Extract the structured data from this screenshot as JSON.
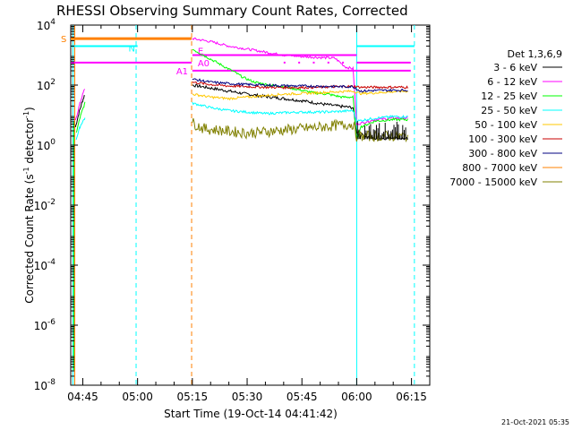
{
  "chart_data": {
    "type": "line",
    "title": "RHESSI Observing Summary Count Rates, Corrected",
    "xlabel": "Start Time (19-Oct-14 04:41:42)",
    "ylabel_prefix": "Corrected Count Rate (s",
    "ylabel_sup": "-1",
    "ylabel_suffix": " detector",
    "ylabel_sup2": "-1",
    "ylabel_close": ")",
    "timestamp": "21-Oct-2021 05:35",
    "x_range_minutes": [
      41.7,
      140
    ],
    "ylim_log10": [
      -8,
      4
    ],
    "x_ticks": [
      {
        "label": "04:45",
        "minute": 45
      },
      {
        "label": "05:00",
        "minute": 60
      },
      {
        "label": "05:15",
        "minute": 75
      },
      {
        "label": "05:30",
        "minute": 90
      },
      {
        "label": "05:45",
        "minute": 105
      },
      {
        "label": "06:00",
        "minute": 120
      },
      {
        "label": "06:15",
        "minute": 135
      }
    ],
    "y_ticks": [
      {
        "base": "10",
        "exp": "4",
        "log": 4
      },
      {
        "base": "10",
        "exp": "2",
        "log": 2
      },
      {
        "base": "10",
        "exp": "0",
        "log": 0
      },
      {
        "base": "10",
        "exp": "-2",
        "log": -2
      },
      {
        "base": "10",
        "exp": "-4",
        "log": -4
      },
      {
        "base": "10",
        "exp": "-6",
        "log": -6
      },
      {
        "base": "10",
        "exp": "-8",
        "log": -8
      }
    ],
    "legend_title": "Det 1,3,6,9",
    "series": [
      {
        "name": "3 - 6 keV",
        "color": "#000000",
        "pre": [
          [
            43.0,
            0.6
          ],
          [
            44.0,
            1.1
          ],
          [
            45.0,
            1.5
          ],
          [
            45.6,
            1.7
          ]
        ],
        "main": [
          [
            75.0,
            2.0
          ],
          [
            80,
            1.9
          ],
          [
            85,
            1.8
          ],
          [
            90,
            1.7
          ],
          [
            95,
            1.62
          ],
          [
            100,
            1.55
          ],
          [
            105,
            1.48
          ],
          [
            110,
            1.38
          ],
          [
            115,
            1.3
          ],
          [
            119,
            1.25
          ],
          [
            120,
            0.4
          ],
          [
            125,
            0.2
          ],
          [
            130,
            0.25
          ],
          [
            134,
            0.2
          ]
        ]
      },
      {
        "name": "6 - 12 keV",
        "color": "#ff00ff",
        "pre": [
          [
            43.0,
            0.8
          ],
          [
            44.0,
            1.3
          ],
          [
            45.0,
            1.7
          ],
          [
            45.6,
            1.9
          ]
        ],
        "main": [
          [
            75.0,
            3.55
          ],
          [
            80,
            3.45
          ],
          [
            85,
            3.3
          ],
          [
            90,
            3.2
          ],
          [
            95,
            3.1
          ],
          [
            100,
            3.0
          ],
          [
            105,
            2.95
          ],
          [
            110,
            2.92
          ],
          [
            114,
            2.9
          ],
          [
            117,
            2.6
          ],
          [
            119,
            2.55
          ],
          [
            120,
            0.7
          ],
          [
            125,
            0.85
          ],
          [
            130,
            0.9
          ],
          [
            134,
            0.9
          ]
        ]
      },
      {
        "name": "12 - 25 keV",
        "color": "#00ff00",
        "pre": [
          [
            43.2,
            0.4
          ],
          [
            44.2,
            0.9
          ],
          [
            45.0,
            1.2
          ],
          [
            45.6,
            1.4
          ]
        ],
        "main": [
          [
            75.0,
            3.2
          ],
          [
            78,
            3.0
          ],
          [
            81,
            2.8
          ],
          [
            84,
            2.6
          ],
          [
            87,
            2.4
          ],
          [
            89,
            2.25
          ],
          [
            92,
            2.1
          ],
          [
            96,
            2.0
          ],
          [
            100,
            1.95
          ],
          [
            104,
            1.85
          ],
          [
            108,
            1.75
          ],
          [
            112,
            1.7
          ],
          [
            116,
            1.6
          ],
          [
            119,
            1.6
          ],
          [
            120,
            0.1
          ],
          [
            121,
            0.6
          ],
          [
            125,
            0.8
          ],
          [
            130,
            0.85
          ],
          [
            134,
            0.85
          ]
        ]
      },
      {
        "name": "25 - 50 keV",
        "color": "#00ffff",
        "pre": [
          [
            43.2,
            0.2
          ],
          [
            44.2,
            0.6
          ],
          [
            45.0,
            0.8
          ],
          [
            45.6,
            0.9
          ]
        ],
        "main": [
          [
            75.0,
            1.4
          ],
          [
            80,
            1.25
          ],
          [
            85,
            1.15
          ],
          [
            90,
            1.1
          ],
          [
            95,
            1.05
          ],
          [
            100,
            1.08
          ],
          [
            105,
            1.1
          ],
          [
            110,
            1.1
          ],
          [
            115,
            1.12
          ],
          [
            119,
            1.15
          ],
          [
            120,
            0.8
          ],
          [
            125,
            0.9
          ],
          [
            130,
            0.95
          ],
          [
            134,
            0.95
          ]
        ]
      },
      {
        "name": "50 - 100 keV",
        "color": "#ffc800",
        "pre": [],
        "main": [
          [
            75.0,
            1.7
          ],
          [
            80,
            1.6
          ],
          [
            85,
            1.55
          ],
          [
            90,
            1.6
          ],
          [
            95,
            1.65
          ],
          [
            100,
            1.7
          ],
          [
            105,
            1.72
          ],
          [
            110,
            1.75
          ],
          [
            115,
            1.78
          ],
          [
            119,
            1.8
          ],
          [
            121,
            1.72
          ],
          [
            125,
            1.74
          ],
          [
            130,
            1.78
          ],
          [
            134,
            1.8
          ]
        ]
      },
      {
        "name": "100 - 300 keV",
        "color": "#c80000",
        "pre": [],
        "main": [
          [
            75.0,
            2.1
          ],
          [
            80,
            2.02
          ],
          [
            85,
            1.97
          ],
          [
            90,
            1.95
          ],
          [
            95,
            1.93
          ],
          [
            100,
            1.92
          ],
          [
            105,
            1.92
          ],
          [
            110,
            1.93
          ],
          [
            115,
            1.95
          ],
          [
            119,
            1.96
          ],
          [
            121,
            1.93
          ],
          [
            125,
            1.93
          ],
          [
            130,
            1.93
          ],
          [
            134,
            1.93
          ]
        ]
      },
      {
        "name": "300 - 800 keV",
        "color": "#000080",
        "pre": [],
        "main": [
          [
            75.0,
            2.2
          ],
          [
            80,
            2.1
          ],
          [
            85,
            2.05
          ],
          [
            90,
            2.02
          ],
          [
            95,
            2.0
          ],
          [
            100,
            1.98
          ],
          [
            105,
            1.97
          ],
          [
            110,
            1.96
          ],
          [
            115,
            1.95
          ],
          [
            119,
            1.95
          ],
          [
            121,
            1.8
          ],
          [
            125,
            1.82
          ],
          [
            130,
            1.83
          ],
          [
            134,
            1.83
          ]
        ]
      },
      {
        "name": "800 - 7000 keV",
        "color": "#ff8000",
        "pre": [],
        "main": []
      },
      {
        "name": "7000 - 15000 keV",
        "color": "#808000",
        "pre": [],
        "main": [
          [
            75.0,
            0.75
          ],
          [
            78,
            0.55
          ],
          [
            82,
            0.5
          ],
          [
            86,
            0.45
          ],
          [
            90,
            0.4
          ],
          [
            95,
            0.45
          ],
          [
            100,
            0.5
          ],
          [
            105,
            0.55
          ],
          [
            110,
            0.6
          ],
          [
            114,
            0.65
          ],
          [
            119,
            0.7
          ],
          [
            120,
            0.3
          ],
          [
            134,
            0.3
          ]
        ]
      }
    ],
    "flags": [
      {
        "label": "S",
        "color": "#ff8000",
        "log": 3.55,
        "x_start": 41.7,
        "x_end": 74.8,
        "dy": -0.35
      },
      {
        "label": "N",
        "color": "#00ffff",
        "log": 3.3,
        "x_start": 41.7,
        "x_end": 60,
        "x2_start": 120,
        "x2_end": 135.8,
        "dy": 0.2
      },
      {
        "label": "E",
        "color": "#ff00ff",
        "log": 3.0,
        "x_start": 75,
        "x_end": 120
      },
      {
        "label": "A0",
        "color": "#ff00ff",
        "log": 2.75,
        "x_start": 41.7,
        "x_end": 74.8,
        "x2_start": 120,
        "x2_end": 134.8
      },
      {
        "label": "A1",
        "color": "#ff00ff",
        "log": 2.48,
        "x_start": 75,
        "x_end": 134.8
      }
    ],
    "vlines": [
      {
        "minute": 42.3,
        "color": "#00ffff",
        "style": "solid"
      },
      {
        "minute": 42.8,
        "color": "#ff8000",
        "style": "solid"
      },
      {
        "minute": 59.6,
        "color": "#00ffff",
        "style": "dashed"
      },
      {
        "minute": 74.8,
        "color": "#ff8000",
        "style": "dashed"
      },
      {
        "minute": 120.0,
        "color": "#00ffff",
        "style": "solid"
      },
      {
        "minute": 135.8,
        "color": "#00ffff",
        "style": "dashed"
      }
    ]
  }
}
